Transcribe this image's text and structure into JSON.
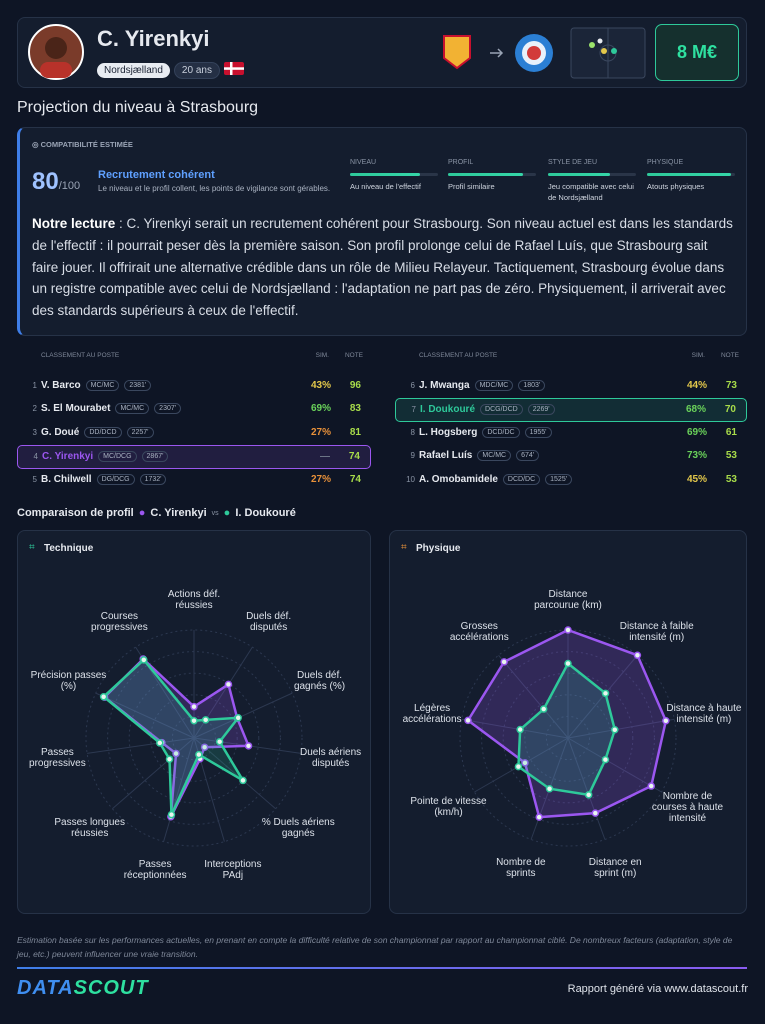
{
  "header": {
    "name": "C. Yirenkyi",
    "club": "Nordsjælland",
    "age": "20 ans",
    "market_value": "8 M€"
  },
  "projection_title": "Projection du niveau à Strasbourg",
  "compatibility": {
    "label": "COMPATIBILITÉ ESTIMÉE",
    "score": 80,
    "score_max": "/100",
    "verdict": "Recrutement cohérent",
    "verdict_text": "Le niveau et le profil collent, les points de vigilance sont gérables.",
    "xlim": [
      0,
      100
    ],
    "criteria": [
      {
        "label": "NIVEAU",
        "value": 80,
        "text": "Au niveau de l'effectif"
      },
      {
        "label": "PROFIL",
        "value": 85,
        "text": "Profil similaire"
      },
      {
        "label": "STYLE DE JEU",
        "value": 70,
        "text": "Jeu compatible avec celui de Nordsjælland"
      },
      {
        "label": "PHYSIQUE",
        "value": 96,
        "text": "Atouts physiques"
      }
    ]
  },
  "reading": {
    "lead": "Notre lecture",
    "text": " : C. Yirenkyi serait un recrutement cohérent pour Strasbourg. Son niveau actuel est dans les standards de l'effectif : il pourrait peser dès la première saison. Son profil prolonge celui de Rafael Luís, que Strasbourg sait faire jouer. Il offrirait une alternative crédible dans un rôle de Milieu Relayeur. Tactiquement, Strasbourg évolue dans un registre compatible avec celui de Nordsjælland : l'adaptation ne part pas de zéro. Physiquement, il arriverait avec des standards supérieurs à ceux de l'effectif."
  },
  "ranking": {
    "headers": [
      "CLASSEMENT AU POSTE",
      "SIM.",
      "NOTE"
    ],
    "rows": [
      {
        "rank": 1,
        "name": "V. Barco",
        "positions": "MC/MC",
        "minutes": "2381'",
        "sim": "43%",
        "note": 96
      },
      {
        "rank": 2,
        "name": "S. El Mourabet",
        "positions": "MC/MC",
        "minutes": "2307'",
        "sim": "69%",
        "note": 83
      },
      {
        "rank": 3,
        "name": "G. Doué",
        "positions": "DD/DCD",
        "minutes": "2257'",
        "sim": "27%",
        "note": 81
      },
      {
        "rank": 4,
        "name": "C. Yirenkyi",
        "positions": "MC/DCG",
        "minutes": "2867'",
        "sim": "—",
        "note": 74,
        "highlight": "#9b57f0"
      },
      {
        "rank": 5,
        "name": "B. Chilwell",
        "positions": "DG/DCG",
        "minutes": "1732'",
        "sim": "27%",
        "note": 74
      },
      {
        "rank": 6,
        "name": "J. Mwanga",
        "positions": "MDC/MC",
        "minutes": "1803'",
        "sim": "44%",
        "note": 73
      },
      {
        "rank": 7,
        "name": "I. Doukouré",
        "positions": "DCG/DCD",
        "minutes": "2269'",
        "sim": "68%",
        "note": 70,
        "highlight": "#2ec99a"
      },
      {
        "rank": 8,
        "name": "L. Hogsberg",
        "positions": "DCD/DC",
        "minutes": "1955'",
        "sim": "69%",
        "note": 61
      },
      {
        "rank": 9,
        "name": "Rafael Luís",
        "positions": "MC/MC",
        "minutes": "674'",
        "sim": "73%",
        "note": 53
      },
      {
        "rank": 10,
        "name": "A. Omobamidele",
        "positions": "DCD/DC",
        "minutes": "1525'",
        "sim": "45%",
        "note": 53
      }
    ]
  },
  "comparison": {
    "title": "Comparaison de profil",
    "vs": "vs"
  },
  "chart_data": [
    {
      "type": "radar",
      "title": "Technique",
      "rlim": [
        0,
        100
      ],
      "categories": [
        "Actions déf. réussies",
        "Duels déf. disputés",
        "Duels déf. gagnés (%)",
        "Duels aériens disputés",
        "% Duels aériens gagnés",
        "Interceptions PAdj",
        "Passes réceptionnées",
        "Passes longues réussies",
        "Passes progressives",
        "Précision passes (%)",
        "Courses progressives"
      ],
      "series": [
        {
          "name": "C. Yirenkyi",
          "color": "#9b57f0",
          "values": [
            29,
            59,
            44,
            51,
            13,
            20,
            76,
            22,
            30,
            91,
            87
          ]
        },
        {
          "name": "I. Doukouré",
          "color": "#2ec99a",
          "values": [
            16,
            20,
            45,
            24,
            60,
            16,
            74,
            30,
            32,
            92,
            86
          ]
        }
      ]
    },
    {
      "type": "radar",
      "title": "Physique",
      "rlim": [
        0,
        100
      ],
      "categories": [
        "Distance parcourue (km)",
        "Distance à faible intensité (m)",
        "Distance à haute intensité (m)",
        "Nombre de courses à haute intensité",
        "Distance en sprint (m)",
        "Nombre de sprints",
        "Pointe de vitesse (km/h)",
        "Légères accélérations",
        "Grosses accélérations"
      ],
      "series": [
        {
          "color": "#9b57f0",
          "values": [
            100,
            100,
            92,
            89,
            74,
            78,
            46,
            94,
            92
          ]
        },
        {
          "color": "#2ec99a",
          "values": [
            69,
            54,
            44,
            40,
            56,
            50,
            53,
            45,
            35
          ]
        }
      ]
    }
  ],
  "footer": {
    "disclaimer": "Estimation basée sur les performances actuelles, en prenant en compte la difficulté relative de son championnat par rapport au championnat ciblé. De nombreux facteurs (adaptation, style de jeu, etc.) peuvent influencer une vraie transition.",
    "logo_left": "DATA",
    "logo_right": "SCOUT",
    "report": "Rapport généré via www.datascout.fr"
  }
}
